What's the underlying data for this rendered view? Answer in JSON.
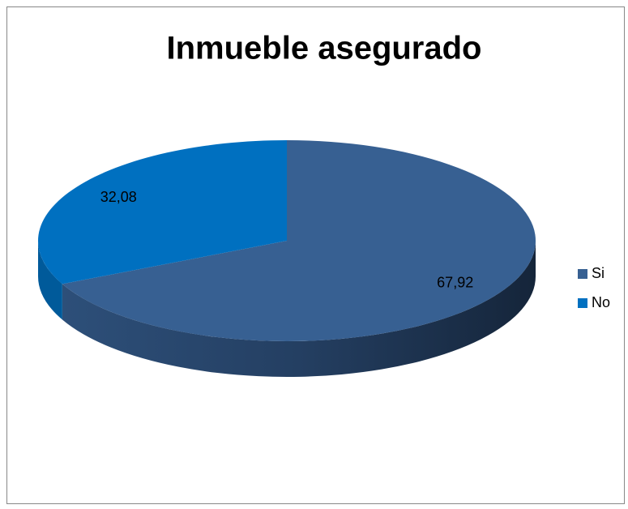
{
  "chart_data": {
    "type": "pie3d",
    "title": "Inmueble asegurado",
    "categories": [
      "Si",
      "No"
    ],
    "values": [
      67.92,
      32.08
    ],
    "value_labels": [
      "67,92",
      "32,08"
    ],
    "colors": [
      "#376092",
      "#0070c0"
    ],
    "legend": "right"
  }
}
